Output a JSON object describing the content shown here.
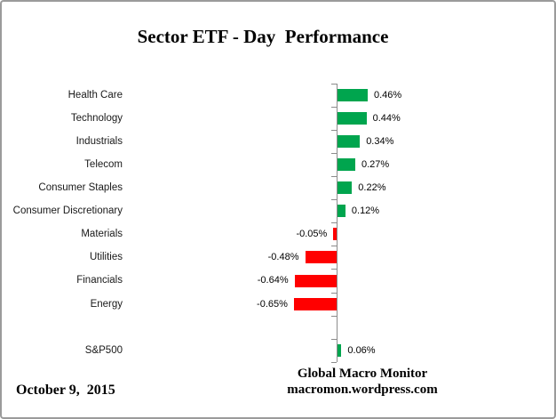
{
  "window": {
    "background": "#FFFFFF",
    "border_color": "#9B9B9B"
  },
  "chart_data": {
    "type": "bar",
    "orientation": "horizontal",
    "title": "Sector ETF - Day  Performance",
    "categories": [
      "Health Care",
      "Technology",
      "Industrials",
      "Telecom",
      "Consumer Staples",
      "Consumer Discretionary",
      "Materials",
      "Utilities",
      "Financials",
      "Energy",
      "S&P500"
    ],
    "values": [
      0.46,
      0.44,
      0.34,
      0.27,
      0.22,
      0.12,
      -0.05,
      -0.48,
      -0.64,
      -0.65,
      0.06
    ],
    "value_labels": [
      "0.46%",
      "0.44%",
      "0.34%",
      "0.27%",
      "0.22%",
      "0.12%",
      "-0.05%",
      "-0.48%",
      "-0.64%",
      "-0.65%",
      "0.06%"
    ],
    "unit": "%",
    "positive_color": "#00A54E",
    "negative_color": "#FF0000",
    "axis_color": "#8C8C8C",
    "grid": "off",
    "legend": "none",
    "gap_before_last_category": true
  },
  "footer": {
    "date": "October 9,  2015",
    "source_line1": "Global Macro Monitor",
    "source_line2": "macromon.wordpress.com"
  }
}
